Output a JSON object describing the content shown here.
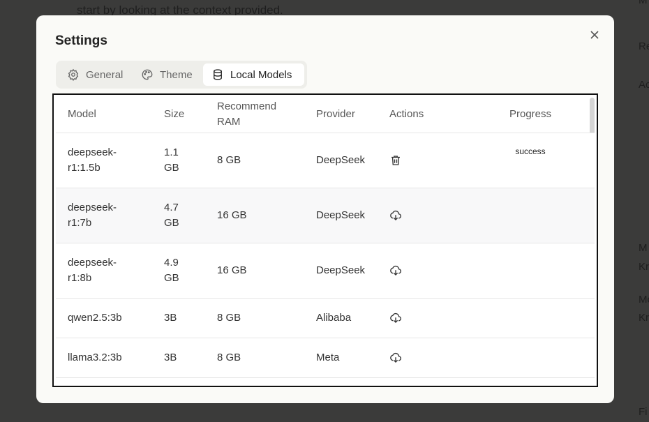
{
  "background": {
    "text": "start by looking at the context provided.",
    "side_labels": [
      "M",
      "Re",
      "Ac",
      "M",
      "Kr",
      "Mo",
      "Kr",
      "Fi"
    ]
  },
  "dialog": {
    "title": "Settings",
    "tabs": [
      "General",
      "Theme",
      "Local Models"
    ],
    "table": {
      "headers": [
        "Model",
        "Size",
        "Recommend RAM",
        "Provider",
        "Actions",
        "Progress"
      ],
      "rows": [
        {
          "model": "deepseek-r1:1.5b",
          "size": "1.1 GB",
          "ram": "8 GB",
          "provider": "DeepSeek",
          "action": "delete",
          "progress": "success"
        },
        {
          "model": "deepseek-r1:7b",
          "size": "4.7 GB",
          "ram": "16 GB",
          "provider": "DeepSeek",
          "action": "download"
        },
        {
          "model": "deepseek-r1:8b",
          "size": "4.9 GB",
          "ram": "16 GB",
          "provider": "DeepSeek",
          "action": "download"
        },
        {
          "model": "qwen2.5:3b",
          "size": "3B",
          "ram": "8 GB",
          "provider": "Alibaba",
          "action": "download"
        },
        {
          "model": "llama3.2:3b",
          "size": "3B",
          "ram": "8 GB",
          "provider": "Meta",
          "action": "download"
        }
      ]
    }
  }
}
